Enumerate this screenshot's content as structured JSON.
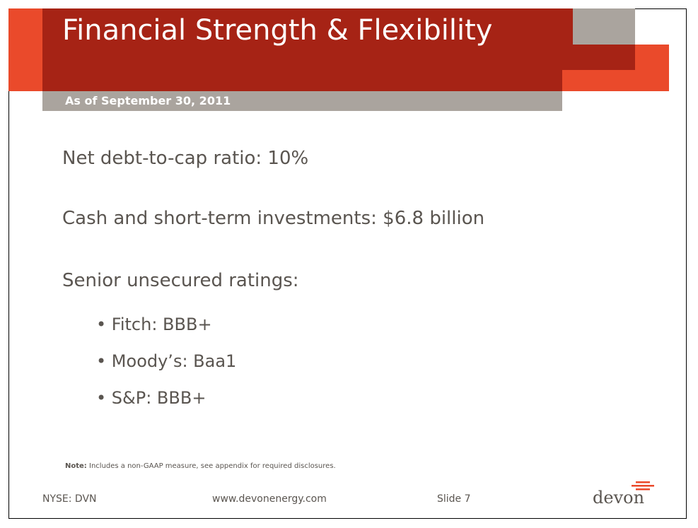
{
  "slide": {
    "title": "Financial Strength & Flexibility",
    "subtitle": "As of September 30, 2011"
  },
  "content": {
    "line1": "Net debt-to-cap ratio: 10%",
    "line2": "Cash and short-term investments: $6.8 billion",
    "line3": "Senior unsecured ratings:",
    "bullets": [
      "Fitch: BBB+",
      "Moody’s: Baa1",
      "S&P: BBB+"
    ]
  },
  "note": {
    "label": "Note:",
    "text": "Includes a non-GAAP measure, see appendix for required disclosures."
  },
  "footer": {
    "ticker": "NYSE: DVN",
    "url": "www.devonenergy.com",
    "slide_number": "Slide 7"
  },
  "logo": {
    "text": "devon"
  },
  "colors": {
    "dark_red": "#a62315",
    "orange": "#ea4a2b",
    "gray": "#aaa49e",
    "text": "#5a5550"
  }
}
